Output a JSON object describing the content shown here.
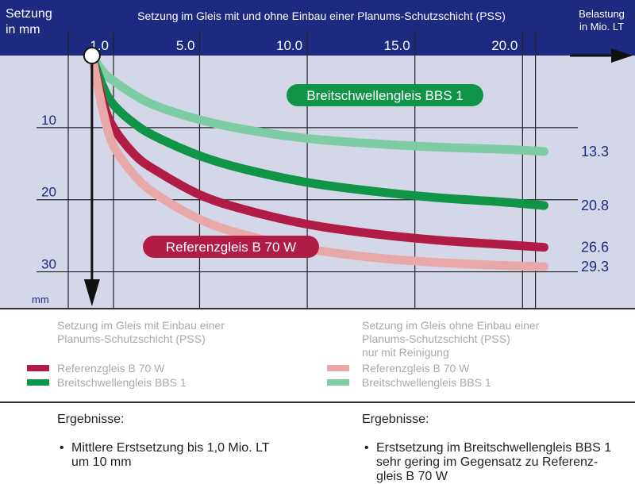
{
  "chart_data": {
    "type": "line",
    "title": "Setzung im Gleis mit und ohne Einbau einer Planums-Schutzschicht (PSS)",
    "ylabel": "Setzung\nin mm",
    "ylabel_bottom": "mm",
    "xlabel": "Belastung\nin Mio. LT",
    "x_ticks": [
      "1.0",
      "5.0",
      "10.0",
      "15.0",
      "20.0"
    ],
    "x_tick_values": [
      1,
      5,
      10,
      15,
      20
    ],
    "y_ticks": [
      "10",
      "20",
      "30"
    ],
    "y_tick_values": [
      10,
      20,
      30
    ],
    "xlim": [
      -1.1,
      22.2
    ],
    "ylim": [
      0,
      35
    ],
    "series": [
      {
        "name": "Breitschwellengleis BBS 1",
        "group": "ohne",
        "color": "#7dcca3",
        "end_label": "13.3",
        "x": [
          0,
          0.5,
          1,
          2,
          3,
          5,
          7,
          10,
          13,
          16,
          19,
          21
        ],
        "y": [
          0,
          2.2,
          3.5,
          5.5,
          7.0,
          8.9,
          10.2,
          11.5,
          12.2,
          12.7,
          13.0,
          13.3
        ]
      },
      {
        "name": "Breitschwellengleis BBS 1",
        "group": "mit",
        "color": "#109447",
        "end_label": "20.8",
        "x": [
          0,
          0.5,
          1,
          2,
          3,
          5,
          7,
          10,
          13,
          16,
          19,
          21
        ],
        "y": [
          0,
          4.2,
          6.8,
          9.5,
          11.3,
          13.9,
          15.7,
          17.6,
          18.8,
          19.7,
          20.3,
          20.8
        ]
      },
      {
        "name": "Referenzgleis B 70 W",
        "group": "mit",
        "color": "#b01c45",
        "end_label": "26.6",
        "x": [
          0,
          0.5,
          1,
          2,
          3,
          5,
          7,
          10,
          13,
          16,
          19,
          21
        ],
        "y": [
          0,
          6.3,
          10.0,
          13.8,
          16.0,
          19.3,
          21.3,
          23.4,
          24.7,
          25.6,
          26.2,
          26.6
        ]
      },
      {
        "name": "Referenzgleis B 70 W",
        "group": "ohne",
        "color": "#e8a8a8",
        "end_label": "29.3",
        "x": [
          0,
          0.5,
          1,
          2,
          3,
          5,
          7,
          10,
          13,
          16,
          19,
          21
        ],
        "y": [
          0,
          7.5,
          12.5,
          16.7,
          19.3,
          22.7,
          24.8,
          26.8,
          28.0,
          28.7,
          29.1,
          29.3
        ]
      }
    ],
    "annotations": [
      {
        "text": "Breitschwellengleis BBS 1",
        "color": "#109447"
      },
      {
        "text": "Referenzgleis B 70 W",
        "color": "#b01c45"
      }
    ],
    "colors": {
      "plot_bg": "#d4d7e8",
      "header": "#1c2a80",
      "grid": "#222222",
      "accent_dark": "#1c2a80"
    }
  },
  "legend": {
    "left_title": "Setzung im Gleis mit Einbau einer\nPlanums-Schutzschicht (PSS)",
    "right_title": "Setzung im Gleis ohne Einbau einer\nPlanums-Schutzschicht (PSS)\nnur mit Reinigung",
    "left_items": [
      {
        "label": "Referenzgleis B 70 W",
        "color": "#b01c45"
      },
      {
        "label": "Breitschwellengleis BBS 1",
        "color": "#109447"
      }
    ],
    "right_items": [
      {
        "label": "Referenzgleis B 70 W",
        "color": "#e8a8a8"
      },
      {
        "label": "Breitschwellengleis BBS 1",
        "color": "#7dcca3"
      }
    ]
  },
  "results": {
    "left_title": "Ergebnisse:",
    "right_title": "Ergebnisse:",
    "left_items": [
      "Mittlere Erstsetzung bis 1,0 Mio. LT\num 10 mm"
    ],
    "right_items": [
      "Erstsetzung im Breitschwellengleis BBS 1\nsehr gering im Gegensatz zu Referenz-\ngleis B 70 W"
    ]
  }
}
